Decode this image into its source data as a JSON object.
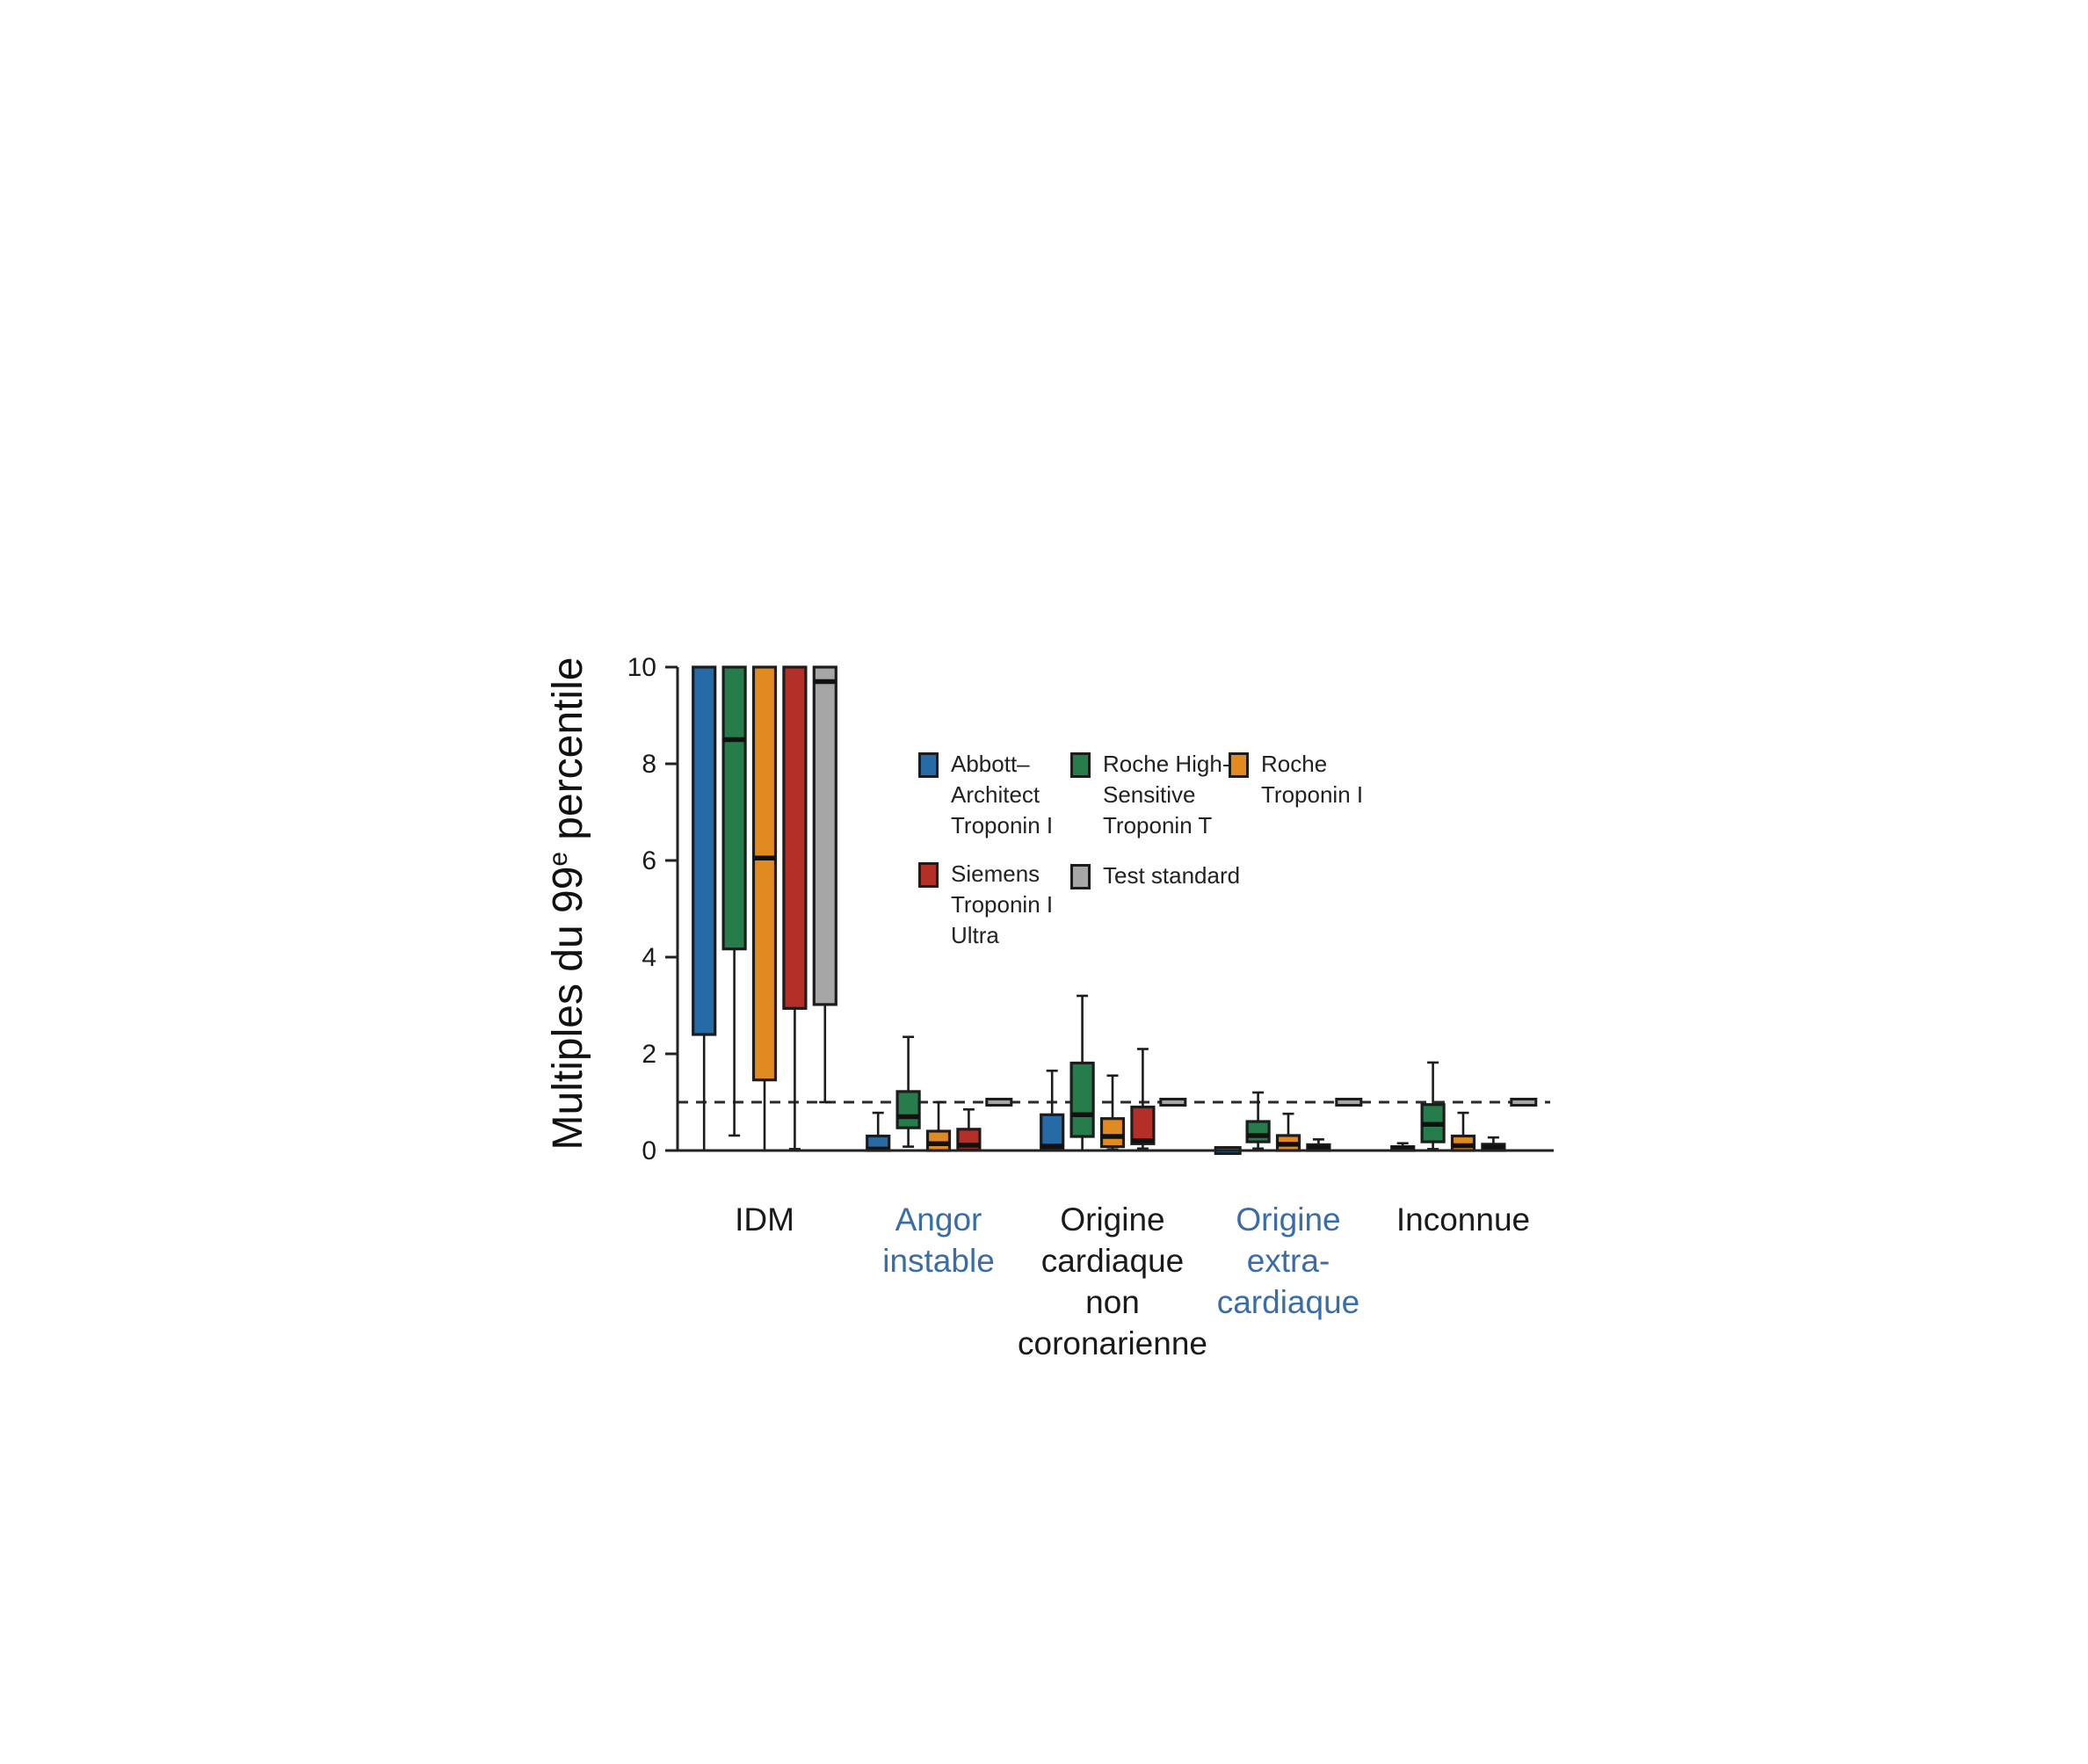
{
  "figure": {
    "background": "#ffffff",
    "axis_color": "#222222",
    "box_border_color": "#1c1c1c",
    "reference_line_color": "#2b2b2b",
    "category_highlight_color": "#3a6da7",
    "category_default_color": "#1a1a1a"
  },
  "chart_data": {
    "type": "boxplot",
    "title": "",
    "xlabel": "",
    "ylabel": {
      "prefix": "Multiples du 99",
      "superscript": "e",
      "suffix": " percentile"
    },
    "ylim": [
      0,
      10
    ],
    "yticks": [
      "0",
      "2",
      "4",
      "6",
      "8",
      "10"
    ],
    "ytick_values": [
      0,
      2,
      4,
      6,
      8,
      10
    ],
    "grid": false,
    "reference_line_y": 1.0,
    "legend_position": "upper-right-inside",
    "categories": [
      {
        "key": "idm",
        "label": "IDM",
        "color": "#1a1a1a"
      },
      {
        "key": "angor-instable",
        "label": "Angor\ninstable",
        "color": "#3a6da7"
      },
      {
        "key": "origine-cardiaque-non-coronarienne",
        "label": "Origine\ncardiaque\nnon\ncoronarienne",
        "color": "#1a1a1a"
      },
      {
        "key": "origine-extra-cardiaque",
        "label": "Origine\nextra-\ncardiaque",
        "color": "#3a6da7"
      },
      {
        "key": "inconnue",
        "label": "Inconnue",
        "color": "#1a1a1a"
      }
    ],
    "series": [
      {
        "key": "abbott-architect-troponin-i",
        "name": "Abbott–Architect Troponin I",
        "legend_label": "Abbott–\nArchitect\nTroponin I",
        "color": "#276ba6",
        "boxes": [
          {
            "low": 0,
            "q1": 2.4,
            "median": null,
            "q3": 10,
            "high": null,
            "clipped_top": true
          },
          {
            "low": 0,
            "q1": 0,
            "median": 0.03,
            "q3": 0.3,
            "high": 0.78
          },
          {
            "low": 0,
            "q1": 0.04,
            "median": 0.09,
            "q3": 0.74,
            "high": 1.65
          },
          {
            "flat": 0
          },
          {
            "low": 0,
            "q1": 0,
            "median": 0.04,
            "q3": 0.08,
            "high": 0.15
          }
        ]
      },
      {
        "key": "roche-high-sensitive-troponin-t",
        "name": "Roche High-Sensitive Troponin T",
        "legend_label": "Roche High-\nSensitive\nTroponin T",
        "color": "#267c4b",
        "boxes": [
          {
            "low": 0.31,
            "q1": 4.17,
            "median": 8.5,
            "q3": 10,
            "high": null,
            "clipped_top": true
          },
          {
            "low": 0.08,
            "q1": 0.47,
            "median": 0.7,
            "q3": 1.22,
            "high": 2.35
          },
          {
            "low": 0,
            "q1": 0.29,
            "median": 0.74,
            "q3": 1.81,
            "high": 3.2
          },
          {
            "low": 0.04,
            "q1": 0.18,
            "median": 0.31,
            "q3": 0.6,
            "high": 1.2
          },
          {
            "low": 0.03,
            "q1": 0.18,
            "median": 0.54,
            "q3": 0.95,
            "high": 1.82
          }
        ]
      },
      {
        "key": "roche-troponin-i",
        "name": "Roche Troponin I",
        "legend_label": "Roche\nTroponin I",
        "color": "#e08a20",
        "boxes": [
          {
            "low": 0,
            "q1": 1.46,
            "median": 6.05,
            "q3": 10,
            "high": null,
            "clipped_top": true
          },
          {
            "low": 0,
            "q1": 0,
            "median": 0.14,
            "q3": 0.4,
            "high": 1.0
          },
          {
            "low": 0.02,
            "q1": 0.08,
            "median": 0.29,
            "q3": 0.66,
            "high": 1.55
          },
          {
            "low": 0,
            "q1": 0,
            "median": 0.13,
            "q3": 0.31,
            "high": 0.76
          },
          {
            "low": 0,
            "q1": 0,
            "median": 0.1,
            "q3": 0.3,
            "high": 0.78
          }
        ]
      },
      {
        "key": "siemens-troponin-i-ultra",
        "name": "Siemens Troponin I Ultra",
        "legend_label": "Siemens\nTroponin I\nUltra",
        "color": "#b52f29",
        "boxes": [
          {
            "low": 0.03,
            "q1": 2.94,
            "median": null,
            "q3": 10,
            "high": null,
            "clipped_top": true
          },
          {
            "low": 0,
            "q1": 0.01,
            "median": 0.11,
            "q3": 0.44,
            "high": 0.85
          },
          {
            "low": 0.04,
            "q1": 0.14,
            "median": 0.2,
            "q3": 0.9,
            "high": 2.1
          },
          {
            "low": 0,
            "q1": 0,
            "median": 0.06,
            "q3": 0.12,
            "high": 0.23
          },
          {
            "low": 0,
            "q1": 0,
            "median": 0.07,
            "q3": 0.13,
            "high": 0.27
          }
        ]
      },
      {
        "key": "test-standard",
        "name": "Test standard",
        "legend_label": "Test standard",
        "color": "#a6a6a6",
        "boxes": [
          {
            "low": 1.0,
            "q1": 3.02,
            "median": 9.7,
            "q3": 10,
            "high": null,
            "clipped_top": true
          },
          {
            "flat": 1.0
          },
          {
            "flat": 1.0
          },
          {
            "flat": 1.0
          },
          {
            "flat": 1.0
          }
        ]
      }
    ]
  }
}
